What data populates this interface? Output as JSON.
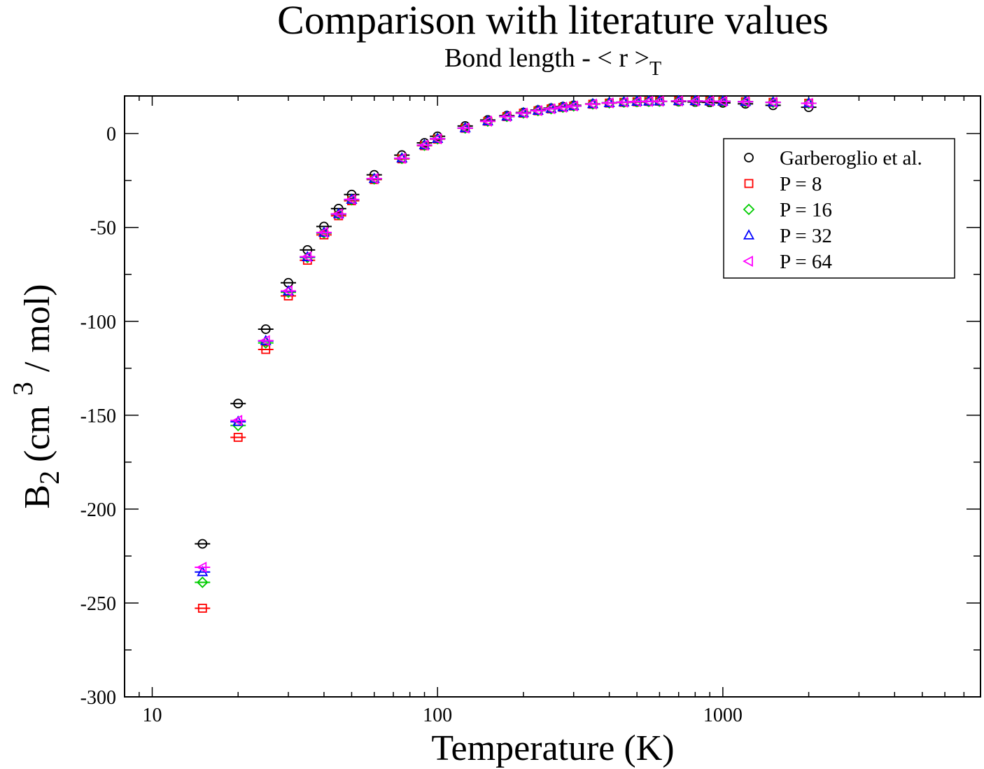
{
  "chart_data": {
    "type": "scatter",
    "title": "Comparison with literature values",
    "subtitle": {
      "text": "Bond length - < r >",
      "subscript": "T"
    },
    "xlabel": "Temperature (K)",
    "ylabel": {
      "base": "B",
      "subscript": "2",
      "unit_before": "(cm",
      "superscript": "3",
      "unit_after": "/ mol)"
    },
    "x_scale": "log",
    "xlim": [
      8,
      8000
    ],
    "ylim": [
      -300,
      20
    ],
    "x_ticks": [
      {
        "value": 10,
        "label": "10"
      },
      {
        "value": 100,
        "label": "100"
      },
      {
        "value": 1000,
        "label": "1000"
      }
    ],
    "y_ticks": [
      {
        "value": 0,
        "label": "0"
      },
      {
        "value": -50,
        "label": "-50"
      },
      {
        "value": -100,
        "label": "-100"
      },
      {
        "value": -150,
        "label": "-150"
      },
      {
        "value": -200,
        "label": "-200"
      },
      {
        "value": -250,
        "label": "-250"
      },
      {
        "value": -300,
        "label": "-300"
      }
    ],
    "grid": false,
    "legend_position": "top-right",
    "series": [
      {
        "name": "Garberoglio et al.",
        "color": "#000000",
        "marker": "circle",
        "points": [
          [
            15,
            -218.5
          ],
          [
            20,
            -143.8
          ],
          [
            25,
            -104.2
          ],
          [
            30,
            -79.5
          ],
          [
            35,
            -62.0
          ],
          [
            40,
            -49.5
          ],
          [
            45,
            -40.0
          ],
          [
            50,
            -32.5
          ],
          [
            60,
            -22.0
          ],
          [
            75,
            -11.5
          ],
          [
            90,
            -5.0
          ],
          [
            100,
            -1.5
          ],
          [
            125,
            4.0
          ],
          [
            150,
            7.2
          ],
          [
            175,
            9.5
          ],
          [
            200,
            11.2
          ],
          [
            225,
            12.5
          ],
          [
            250,
            13.5
          ],
          [
            275,
            14.3
          ],
          [
            300,
            15.0
          ],
          [
            350,
            15.8
          ],
          [
            400,
            16.3
          ],
          [
            450,
            16.6
          ],
          [
            500,
            16.8
          ],
          [
            550,
            17.0
          ],
          [
            600,
            17.1
          ],
          [
            700,
            17.0
          ],
          [
            800,
            16.8
          ],
          [
            900,
            16.6
          ],
          [
            1000,
            16.3
          ],
          [
            1200,
            15.8
          ],
          [
            1500,
            15.0
          ],
          [
            2000,
            14.0
          ]
        ]
      },
      {
        "name": "P = 8",
        "color": "#ff0000",
        "marker": "square",
        "points": [
          [
            15,
            -252.8
          ],
          [
            20,
            -161.8
          ],
          [
            25,
            -115.0
          ],
          [
            30,
            -86.5
          ],
          [
            35,
            -67.5
          ],
          [
            40,
            -54.0
          ],
          [
            45,
            -43.8
          ],
          [
            50,
            -35.8
          ],
          [
            60,
            -24.5
          ],
          [
            75,
            -13.5
          ],
          [
            90,
            -6.5
          ],
          [
            100,
            -3.0
          ],
          [
            125,
            2.8
          ],
          [
            150,
            6.5
          ],
          [
            175,
            9.0
          ],
          [
            200,
            10.8
          ],
          [
            225,
            12.1
          ],
          [
            250,
            13.1
          ],
          [
            275,
            13.9
          ],
          [
            300,
            14.6
          ],
          [
            350,
            15.6
          ],
          [
            400,
            16.2
          ],
          [
            450,
            16.6
          ],
          [
            500,
            16.9
          ],
          [
            550,
            17.1
          ],
          [
            600,
            17.2
          ],
          [
            700,
            17.3
          ],
          [
            800,
            17.3
          ],
          [
            900,
            17.2
          ],
          [
            1000,
            17.1
          ],
          [
            1200,
            16.9
          ],
          [
            1500,
            16.6
          ],
          [
            2000,
            16.1
          ]
        ]
      },
      {
        "name": "P = 16",
        "color": "#00cc00",
        "marker": "diamond",
        "points": [
          [
            15,
            -239.0
          ],
          [
            20,
            -155.5
          ],
          [
            25,
            -111.5
          ],
          [
            30,
            -84.5
          ],
          [
            35,
            -66.0
          ],
          [
            40,
            -53.0
          ],
          [
            45,
            -43.0
          ],
          [
            50,
            -35.3
          ],
          [
            60,
            -24.2
          ],
          [
            75,
            -13.3
          ],
          [
            90,
            -6.3
          ],
          [
            100,
            -2.8
          ],
          [
            125,
            2.9
          ],
          [
            150,
            6.6
          ],
          [
            175,
            9.1
          ],
          [
            200,
            10.9
          ],
          [
            225,
            12.2
          ],
          [
            250,
            13.2
          ],
          [
            275,
            14.0
          ],
          [
            300,
            14.7
          ],
          [
            350,
            15.7
          ],
          [
            400,
            16.3
          ],
          [
            450,
            16.7
          ],
          [
            500,
            17.0
          ],
          [
            550,
            17.1
          ],
          [
            600,
            17.2
          ],
          [
            700,
            17.3
          ],
          [
            800,
            17.3
          ],
          [
            900,
            17.2
          ],
          [
            1000,
            17.1
          ],
          [
            1200,
            16.9
          ],
          [
            1500,
            16.6
          ],
          [
            2000,
            16.1
          ]
        ]
      },
      {
        "name": "P = 32",
        "color": "#0000ff",
        "marker": "triangle-up",
        "points": [
          [
            15,
            -233.5
          ],
          [
            20,
            -153.5
          ],
          [
            25,
            -110.5
          ],
          [
            30,
            -84.0
          ],
          [
            35,
            -65.8
          ],
          [
            40,
            -52.8
          ],
          [
            45,
            -42.9
          ],
          [
            50,
            -35.2
          ],
          [
            60,
            -24.1
          ],
          [
            75,
            -13.2
          ],
          [
            90,
            -6.2
          ],
          [
            100,
            -2.8
          ],
          [
            125,
            2.9
          ],
          [
            150,
            6.6
          ],
          [
            175,
            9.1
          ],
          [
            200,
            10.9
          ],
          [
            225,
            12.2
          ],
          [
            250,
            13.2
          ],
          [
            275,
            14.0
          ],
          [
            300,
            14.7
          ],
          [
            350,
            15.7
          ],
          [
            400,
            16.3
          ],
          [
            450,
            16.7
          ],
          [
            500,
            17.0
          ],
          [
            550,
            17.1
          ],
          [
            600,
            17.2
          ],
          [
            700,
            17.3
          ],
          [
            800,
            17.3
          ],
          [
            900,
            17.2
          ],
          [
            1000,
            17.1
          ],
          [
            1200,
            16.9
          ],
          [
            1500,
            16.6
          ],
          [
            2000,
            16.1
          ]
        ]
      },
      {
        "name": "P = 64",
        "color": "#ff00ff",
        "marker": "triangle-left",
        "points": [
          [
            15,
            -231.0
          ],
          [
            20,
            -152.8
          ],
          [
            25,
            -110.3
          ],
          [
            30,
            -83.8
          ],
          [
            35,
            -65.6
          ],
          [
            40,
            -52.7
          ],
          [
            45,
            -42.8
          ],
          [
            50,
            -35.1
          ],
          [
            60,
            -24.0
          ],
          [
            75,
            -13.2
          ],
          [
            90,
            -6.2
          ],
          [
            100,
            -2.8
          ],
          [
            125,
            2.9
          ],
          [
            150,
            6.6
          ],
          [
            175,
            9.1
          ],
          [
            200,
            10.9
          ],
          [
            225,
            12.2
          ],
          [
            250,
            13.2
          ],
          [
            275,
            14.0
          ],
          [
            300,
            14.7
          ],
          [
            350,
            15.7
          ],
          [
            400,
            16.3
          ],
          [
            450,
            16.7
          ],
          [
            500,
            17.0
          ],
          [
            550,
            17.1
          ],
          [
            600,
            17.2
          ],
          [
            700,
            17.3
          ],
          [
            800,
            17.3
          ],
          [
            900,
            17.2
          ],
          [
            1000,
            17.1
          ],
          [
            1200,
            16.9
          ],
          [
            1500,
            16.6
          ],
          [
            2000,
            16.1
          ]
        ]
      }
    ]
  }
}
